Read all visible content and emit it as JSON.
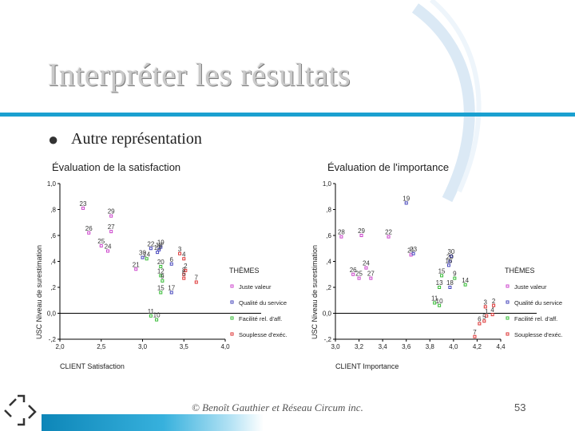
{
  "slide": {
    "title": "Interpréter les résultats",
    "bullet": "Autre représentation",
    "footer": "© Benoît Gauthier et Réseau Circum inc.",
    "page": "53",
    "colors": {
      "accent": "#1aa0d0",
      "title": "#c9c9c9"
    }
  },
  "chart_data": [
    {
      "type": "scatter",
      "title": "Évaluation de la satisfaction",
      "xlabel": "CLIENT Satisfaction",
      "ylabel": "USC Niveau de surestimation",
      "xlim": [
        2.0,
        4.0
      ],
      "ylim": [
        -0.2,
        1.0
      ],
      "xticks": [
        "2,0",
        "2,5",
        "3,0",
        "3,5",
        "4,0"
      ],
      "yticks": [
        "1,0",
        ",8",
        ",6",
        ",4",
        ",2",
        "0,0",
        "-,2"
      ],
      "legend_title": "THÈMES",
      "legend_placement": "right",
      "series": [
        {
          "name": "Juste valeur",
          "color": "#cc44cc",
          "points": [
            {
              "x": 2.28,
              "y": 0.81,
              "label": "23"
            },
            {
              "x": 2.62,
              "y": 0.75,
              "label": "29"
            },
            {
              "x": 2.35,
              "y": 0.62,
              "label": "26"
            },
            {
              "x": 2.62,
              "y": 0.63,
              "label": "27"
            },
            {
              "x": 2.5,
              "y": 0.52,
              "label": "25"
            },
            {
              "x": 2.58,
              "y": 0.48,
              "label": "24"
            },
            {
              "x": 2.92,
              "y": 0.34,
              "label": "21"
            }
          ]
        },
        {
          "name": "Qualité du service",
          "color": "#4444bb",
          "points": [
            {
              "x": 3.1,
              "y": 0.5,
              "label": "22"
            },
            {
              "x": 3.22,
              "y": 0.51,
              "label": "19"
            },
            {
              "x": 3.2,
              "y": 0.49,
              "label": "18"
            },
            {
              "x": 3.0,
              "y": 0.43,
              "label": "30"
            },
            {
              "x": 3.18,
              "y": 0.47,
              "label": "13"
            },
            {
              "x": 3.35,
              "y": 0.38,
              "label": "6"
            },
            {
              "x": 3.35,
              "y": 0.16,
              "label": "17"
            }
          ]
        },
        {
          "name": "Facilité rel. d'aff.",
          "color": "#33bb33",
          "points": [
            {
              "x": 3.05,
              "y": 0.42,
              "label": "14"
            },
            {
              "x": 3.22,
              "y": 0.36,
              "label": "20"
            },
            {
              "x": 3.22,
              "y": 0.29,
              "label": "12"
            },
            {
              "x": 3.24,
              "y": 0.25,
              "label": "9"
            },
            {
              "x": 3.22,
              "y": 0.16,
              "label": "15"
            },
            {
              "x": 3.1,
              "y": -0.02,
              "label": "11"
            },
            {
              "x": 3.17,
              "y": -0.05,
              "label": "10"
            }
          ]
        },
        {
          "name": "Souplesse d'exéc.",
          "color": "#dd3333",
          "points": [
            {
              "x": 3.5,
              "y": 0.42,
              "label": "4"
            },
            {
              "x": 3.45,
              "y": 0.46,
              "label": "3"
            },
            {
              "x": 3.5,
              "y": 0.3,
              "label": "8"
            },
            {
              "x": 3.52,
              "y": 0.33,
              "label": "2"
            },
            {
              "x": 3.5,
              "y": 0.27,
              "label": "5"
            },
            {
              "x": 3.65,
              "y": 0.24,
              "label": "7"
            }
          ]
        }
      ]
    },
    {
      "type": "scatter",
      "title": "Évaluation de l'importance",
      "xlabel": "CLIENT Importance",
      "ylabel": "USC Niveau de surestimation",
      "xlim": [
        3.0,
        4.4
      ],
      "ylim": [
        -0.2,
        1.0
      ],
      "xticks": [
        "3,0",
        "3,2",
        "3,4",
        "3,6",
        "3,8",
        "4,0",
        "4,2",
        "4,4"
      ],
      "yticks": [
        "1,0",
        ",8",
        ",6",
        ",4",
        ",2",
        "0,0",
        "-,2"
      ],
      "legend_title": "THÈMES",
      "legend_placement": "right",
      "series": [
        {
          "name": "Juste valeur",
          "color": "#cc44cc",
          "points": [
            {
              "x": 3.05,
              "y": 0.59,
              "label": "28"
            },
            {
              "x": 3.22,
              "y": 0.6,
              "label": "29"
            },
            {
              "x": 3.45,
              "y": 0.59,
              "label": "22"
            },
            {
              "x": 3.26,
              "y": 0.35,
              "label": "24"
            },
            {
              "x": 3.15,
              "y": 0.3,
              "label": "26"
            },
            {
              "x": 3.2,
              "y": 0.27,
              "label": "25"
            },
            {
              "x": 3.3,
              "y": 0.27,
              "label": "27"
            },
            {
              "x": 3.64,
              "y": 0.45,
              "label": "21"
            }
          ]
        },
        {
          "name": "Qualité du service",
          "color": "#4444bb",
          "points": [
            {
              "x": 3.6,
              "y": 0.85,
              "label": "19"
            },
            {
              "x": 3.66,
              "y": 0.46,
              "label": "23"
            },
            {
              "x": 3.98,
              "y": 0.44,
              "label": "30"
            },
            {
              "x": 3.97,
              "y": 0.4,
              "label": "20"
            },
            {
              "x": 3.96,
              "y": 0.37,
              "label": "16"
            },
            {
              "x": 3.97,
              "y": 0.2,
              "label": "18"
            }
          ]
        },
        {
          "name": "Facilité rel. d'aff.",
          "color": "#33bb33",
          "points": [
            {
              "x": 3.9,
              "y": 0.29,
              "label": "15"
            },
            {
              "x": 3.88,
              "y": 0.2,
              "label": "13"
            },
            {
              "x": 4.01,
              "y": 0.27,
              "label": "9"
            },
            {
              "x": 4.1,
              "y": 0.22,
              "label": "14"
            },
            {
              "x": 3.84,
              "y": 0.08,
              "label": "11"
            },
            {
              "x": 3.88,
              "y": 0.06,
              "label": "10"
            }
          ]
        },
        {
          "name": "Souplesse d'exéc.",
          "color": "#dd3333",
          "points": [
            {
              "x": 4.27,
              "y": 0.05,
              "label": "3"
            },
            {
              "x": 4.34,
              "y": 0.06,
              "label": "2"
            },
            {
              "x": 4.28,
              "y": -0.02,
              "label": "1"
            },
            {
              "x": 4.26,
              "y": -0.06,
              "label": "5"
            },
            {
              "x": 4.22,
              "y": -0.08,
              "label": "6"
            },
            {
              "x": 4.18,
              "y": -0.18,
              "label": "7"
            },
            {
              "x": 4.33,
              "y": -0.01,
              "label": "4"
            }
          ]
        }
      ]
    }
  ]
}
